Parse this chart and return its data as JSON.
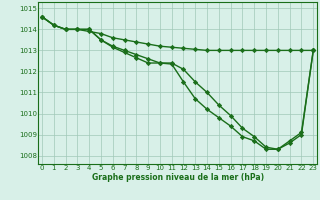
{
  "x": [
    0,
    1,
    2,
    3,
    4,
    5,
    6,
    7,
    8,
    9,
    10,
    11,
    12,
    13,
    14,
    15,
    16,
    17,
    18,
    19,
    20,
    21,
    22,
    23
  ],
  "line_flat": [
    1014.6,
    1014.2,
    1014.0,
    1014.0,
    1013.9,
    1013.8,
    1013.6,
    1013.5,
    1013.4,
    1013.3,
    1013.2,
    1013.15,
    1013.1,
    1013.05,
    1013.0,
    1013.0,
    1013.0,
    1013.0,
    1013.0,
    1013.0,
    1013.0,
    1013.0,
    1013.0,
    1013.0
  ],
  "line_mid": [
    1014.6,
    1014.2,
    1014.0,
    1014.0,
    1014.0,
    1013.5,
    1013.2,
    1013.0,
    1012.8,
    1012.6,
    1012.4,
    1012.4,
    1012.1,
    1011.5,
    1011.0,
    1010.4,
    1009.9,
    1009.3,
    1008.9,
    1008.4,
    1008.3,
    1008.7,
    1009.1,
    1013.0
  ],
  "line_low": [
    1014.6,
    1014.2,
    1014.0,
    1014.0,
    1014.0,
    1013.5,
    1013.15,
    1012.9,
    1012.65,
    1012.4,
    1012.4,
    1012.35,
    1011.5,
    1010.7,
    1010.2,
    1009.8,
    1009.4,
    1008.9,
    1008.7,
    1008.3,
    1008.3,
    1008.6,
    1009.0,
    1013.0
  ],
  "ylim_min": 1007.6,
  "ylim_max": 1015.3,
  "yticks": [
    1008,
    1009,
    1010,
    1011,
    1012,
    1013,
    1014,
    1015
  ],
  "xticks": [
    0,
    1,
    2,
    3,
    4,
    5,
    6,
    7,
    8,
    9,
    10,
    11,
    12,
    13,
    14,
    15,
    16,
    17,
    18,
    19,
    20,
    21,
    22,
    23
  ],
  "line_color": "#1a6e1a",
  "bg_color": "#d8f0e8",
  "grid_color": "#a0c8b8",
  "xlabel": "Graphe pression niveau de la mer (hPa)",
  "xlabel_color": "#1a6e1a",
  "marker": "D",
  "marker_size": 2.2,
  "linewidth": 1.0
}
